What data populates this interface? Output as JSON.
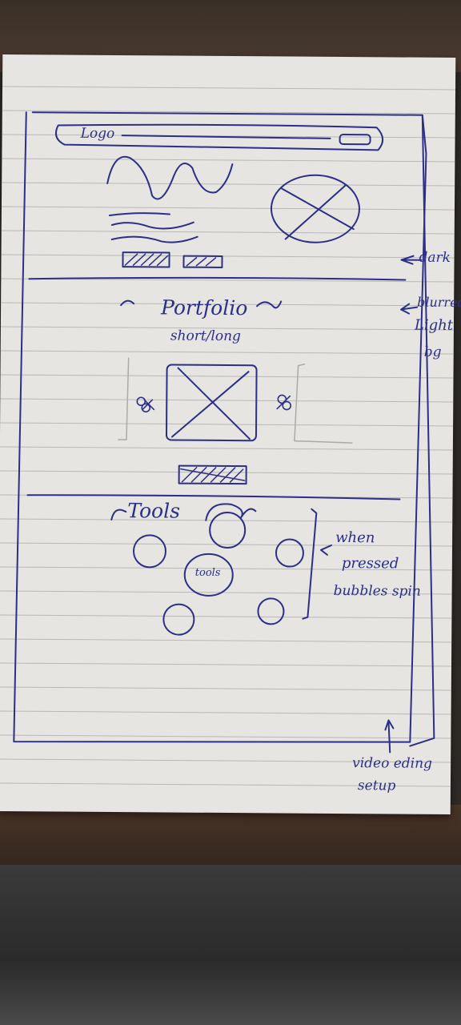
{
  "colors": {
    "ink": "#2c2f87",
    "paper": "#e6e5e2",
    "line": "#b9b8b6"
  },
  "header": {
    "logo_label": "Logo"
  },
  "annotations": {
    "dark": "dark",
    "blurred_light_bg": [
      "blurred",
      "Light",
      "bg"
    ],
    "when_pressed": [
      "when",
      "pressed",
      "bubbles spin"
    ],
    "video_setup": [
      "video eding",
      "setup"
    ]
  },
  "portfolio": {
    "title": "Portfolio",
    "subtitle": "short/long"
  },
  "tools": {
    "title": "Tools",
    "bubble_label": "tools"
  }
}
